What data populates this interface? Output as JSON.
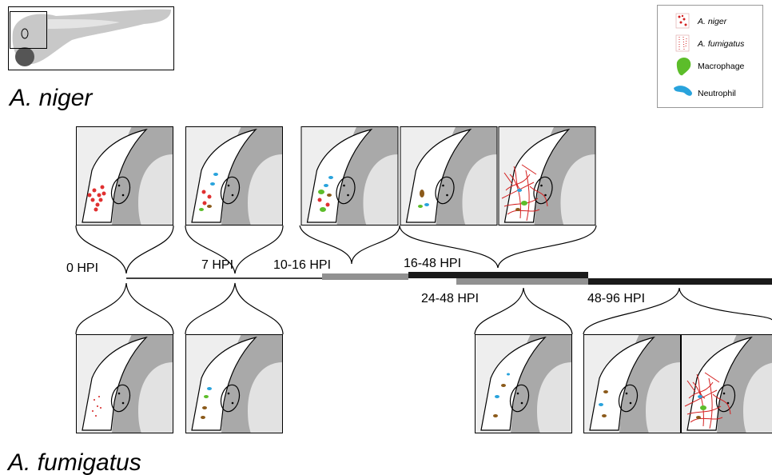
{
  "species": {
    "top": "A. niger",
    "bottom": "A. fumigatus"
  },
  "legend": [
    "A. niger",
    "A. fumigatus",
    "Macrophage",
    "Neutrophil"
  ],
  "timepoints": [
    "0 HPI",
    "7 HPI",
    "10-16 HPI",
    "16-48 HPI",
    "24-48 HPI",
    "48-96 HPI"
  ]
}
